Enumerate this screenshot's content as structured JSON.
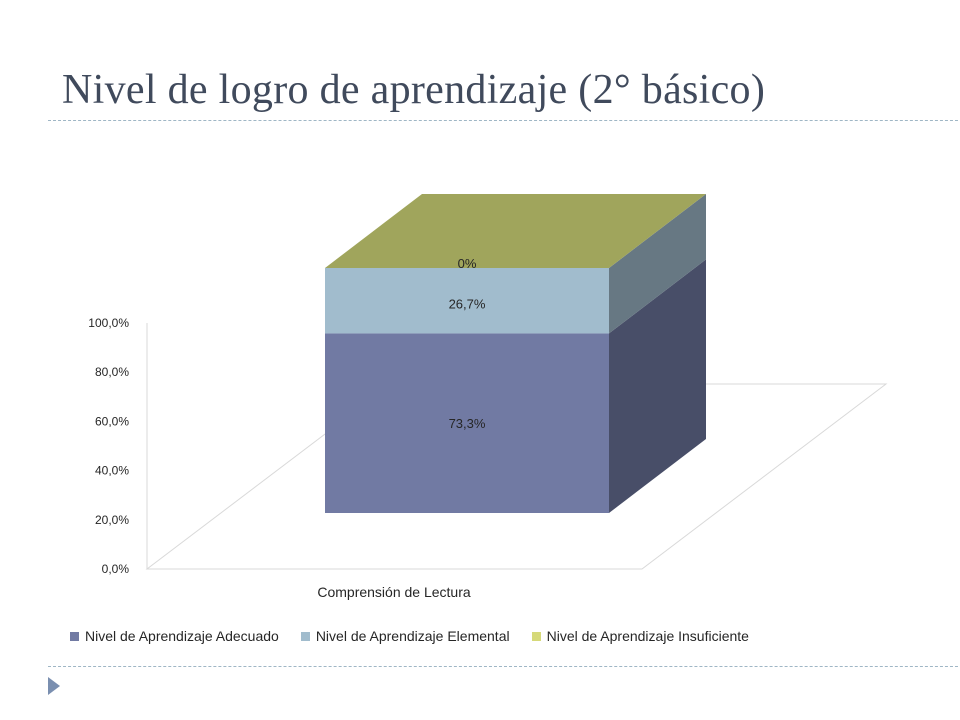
{
  "slide": {
    "title": "Nivel  de logro de aprendizaje (2° básico)"
  },
  "chart_data": {
    "type": "bar",
    "stacked": true,
    "three_d": true,
    "categories": [
      "Comprensión de Lectura"
    ],
    "series": [
      {
        "name": "Nivel de Aprendizaje Adecuado",
        "values": [
          73.3
        ],
        "label": "73,3%",
        "color": "#717aa3"
      },
      {
        "name": "Nivel de Aprendizaje Elemental",
        "values": [
          26.7
        ],
        "label": "26,7%",
        "color": "#a1bccd"
      },
      {
        "name": "Nivel de Aprendizaje Insuficiente",
        "values": [
          0
        ],
        "label": "0%",
        "color": "#a0a55c"
      }
    ],
    "ylim": [
      0,
      100
    ],
    "yticks": [
      "0,0%",
      "20,0%",
      "40,0%",
      "60,0%",
      "80,0%",
      "100,0%"
    ],
    "ytick_values": [
      0,
      20,
      40,
      60,
      80,
      100
    ],
    "legend_position": "bottom",
    "grid": false
  }
}
